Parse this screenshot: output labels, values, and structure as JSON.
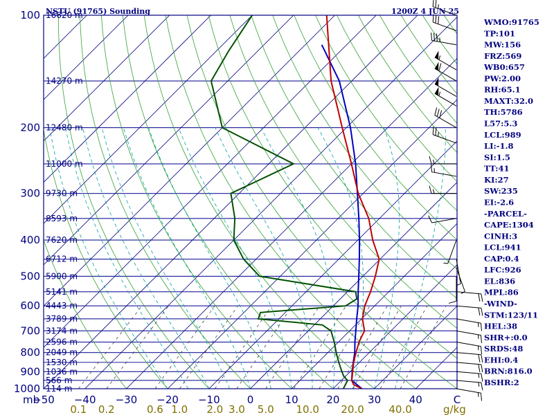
{
  "header": {
    "station_title": "NSTU (91765) Sounding",
    "valid_time": "1200Z  4 JUN 25"
  },
  "indices": [
    "WMO:91765",
    "TP:101",
    "MW:156",
    "FRZ:569",
    "WB0:657",
    "PW:2.00",
    "RH:65.1",
    "MAXT:32.0",
    "TH:5786",
    "L57:5.3",
    "LCL:989",
    "LI:-1.8",
    "SI:1.5",
    "TT:41",
    "KI:27",
    "SW:235",
    "EI:-2.6",
    "-PARCEL-",
    "CAPE:1304",
    "CINH:3",
    "LCL:941",
    "CAP:0.4",
    "LFC:926",
    "EL:836",
    "MPL:86",
    "-WIND-",
    "STM:123/11",
    "HEL:38",
    "SHR+:0.0",
    "SRDS:48",
    "EHI:0.4",
    "BRN:816.0",
    "BSHR:2"
  ],
  "colors": {
    "frame": "#000080",
    "isobar": "#1a1a9a",
    "isotherm": "#000080",
    "dry_adiabat": "#33a033",
    "moist_adiabat": "#00a0a0",
    "mixing_ratio": "#404040",
    "temperature": "#c00000",
    "dewpoint": "#005000",
    "parcel": "#0000c0",
    "mixing_ratio_labels": "#807000"
  },
  "chart_data": {
    "type": "line",
    "title": "NSTU (91765) Sounding",
    "subtitle": "1200Z  4 JUN 25",
    "xlabel": "",
    "ylabel": "mb",
    "y_scale": "log",
    "ylim": [
      1000,
      100
    ],
    "xlim": [
      -50,
      50
    ],
    "grid": true,
    "legend": "none",
    "pressure_ticks": [
      "100",
      "200",
      "300",
      "400",
      "500",
      "600",
      "700",
      "800",
      "900",
      "1000"
    ],
    "temperature_ticks": [
      "−50",
      "−40",
      "−30",
      "−20",
      "−10",
      "0",
      "10",
      "20",
      "30",
      "40"
    ],
    "right_corner_label": "C",
    "y_unit_label": "mb",
    "height_labels": [
      {
        "p": 100,
        "label": "16620 m"
      },
      {
        "p": 150,
        "label": "14270 m"
      },
      {
        "p": 200,
        "label": "12480 m"
      },
      {
        "p": 250,
        "label": "11000 m"
      },
      {
        "p": 300,
        "label": "9730 m"
      },
      {
        "p": 350,
        "label": "8593 m"
      },
      {
        "p": 400,
        "label": "7620 m"
      },
      {
        "p": 450,
        "label": "6712 m"
      },
      {
        "p": 500,
        "label": "5900 m"
      },
      {
        "p": 550,
        "label": "5141 m"
      },
      {
        "p": 600,
        "label": "4443 m"
      },
      {
        "p": 650,
        "label": "3789 m"
      },
      {
        "p": 700,
        "label": "3174 m"
      },
      {
        "p": 750,
        "label": "2596 m"
      },
      {
        "p": 800,
        "label": "2049 m"
      },
      {
        "p": 850,
        "label": "1530 m"
      },
      {
        "p": 900,
        "label": "1036 m"
      },
      {
        "p": 950,
        "label": "566 m"
      },
      {
        "p": 1000,
        "label": "114 m"
      }
    ],
    "mixing_ratio_units": "g/kg",
    "mixing_ratio_labels": [
      "0.1",
      "0.2",
      "0.6",
      "1.0",
      "2.0",
      "3.0",
      "5.0",
      "10.0",
      "20.0",
      "40.0"
    ],
    "series": [
      {
        "key": "temperature",
        "points": [
          {
            "p": 1000,
            "t": 27.0
          },
          {
            "p": 975,
            "t": 24.0
          },
          {
            "p": 950,
            "t": 22.5
          },
          {
            "p": 925,
            "t": 21.6
          },
          {
            "p": 900,
            "t": 20.6
          },
          {
            "p": 850,
            "t": 18.6
          },
          {
            "p": 800,
            "t": 16.8
          },
          {
            "p": 750,
            "t": 15.0
          },
          {
            "p": 700,
            "t": 13.6
          },
          {
            "p": 650,
            "t": 10.2
          },
          {
            "p": 600,
            "t": 7.6
          },
          {
            "p": 550,
            "t": 5.6
          },
          {
            "p": 500,
            "t": 3.0
          },
          {
            "p": 450,
            "t": -0.2
          },
          {
            "p": 400,
            "t": -6.4
          },
          {
            "p": 350,
            "t": -12.6
          },
          {
            "p": 300,
            "t": -21.2
          },
          {
            "p": 250,
            "t": -30.0
          },
          {
            "p": 200,
            "t": -41.0
          },
          {
            "p": 150,
            "t": -55.0
          },
          {
            "p": 100,
            "t": -72.0
          }
        ]
      },
      {
        "key": "dewpoint",
        "points": [
          {
            "p": 1000,
            "t": 22.5
          },
          {
            "p": 950,
            "t": 21.5
          },
          {
            "p": 925,
            "t": 19.5
          },
          {
            "p": 900,
            "t": 18.0
          },
          {
            "p": 850,
            "t": 15.0
          },
          {
            "p": 800,
            "t": 12.0
          },
          {
            "p": 750,
            "t": 9.0
          },
          {
            "p": 700,
            "t": 5.5
          },
          {
            "p": 675,
            "t": 2.0
          },
          {
            "p": 650,
            "t": -15.0
          },
          {
            "p": 625,
            "t": -16.0
          },
          {
            "p": 600,
            "t": 3.0
          },
          {
            "p": 575,
            "t": 4.0
          },
          {
            "p": 550,
            "t": 2.0
          },
          {
            "p": 500,
            "t": -25.0
          },
          {
            "p": 450,
            "t": -33.0
          },
          {
            "p": 400,
            "t": -40.0
          },
          {
            "p": 350,
            "t": -45.0
          },
          {
            "p": 300,
            "t": -52.0
          },
          {
            "p": 250,
            "t": -44.0
          },
          {
            "p": 200,
            "t": -70.0
          },
          {
            "p": 150,
            "t": -84.0
          },
          {
            "p": 125,
            "t": -87.0
          },
          {
            "p": 100,
            "t": -90.0
          }
        ]
      },
      {
        "key": "parcel",
        "points": [
          {
            "p": 1000,
            "t": 27.0
          },
          {
            "p": 950,
            "t": 22.5
          },
          {
            "p": 900,
            "t": 20.5
          },
          {
            "p": 850,
            "t": 18.5
          },
          {
            "p": 800,
            "t": 16.5
          },
          {
            "p": 750,
            "t": 14.0
          },
          {
            "p": 700,
            "t": 11.5
          },
          {
            "p": 650,
            "t": 8.8
          },
          {
            "p": 600,
            "t": 6.0
          },
          {
            "p": 550,
            "t": 2.6
          },
          {
            "p": 500,
            "t": -1.0
          },
          {
            "p": 450,
            "t": -5.0
          },
          {
            "p": 400,
            "t": -9.6
          },
          {
            "p": 350,
            "t": -15.0
          },
          {
            "p": 300,
            "t": -21.4
          },
          {
            "p": 250,
            "t": -29.0
          },
          {
            "p": 200,
            "t": -39.0
          },
          {
            "p": 150,
            "t": -53.0
          },
          {
            "p": 120,
            "t": -66.0
          }
        ]
      }
    ],
    "wind_barbs": [
      {
        "p": 1000,
        "dir": 100,
        "spd": 15
      },
      {
        "p": 950,
        "dir": 95,
        "spd": 15
      },
      {
        "p": 900,
        "dir": 95,
        "spd": 15
      },
      {
        "p": 850,
        "dir": 95,
        "spd": 20
      },
      {
        "p": 800,
        "dir": 95,
        "spd": 20
      },
      {
        "p": 750,
        "dir": 100,
        "spd": 15
      },
      {
        "p": 700,
        "dir": 100,
        "spd": 15
      },
      {
        "p": 650,
        "dir": 100,
        "spd": 15
      },
      {
        "p": 600,
        "dir": 95,
        "spd": 20
      },
      {
        "p": 550,
        "dir": 95,
        "spd": 20
      },
      {
        "p": 500,
        "dir": 180,
        "spd": 10
      },
      {
        "p": 475,
        "dir": 160,
        "spd": 5
      },
      {
        "p": 450,
        "dir": 170,
        "spd": 5
      },
      {
        "p": 400,
        "dir": 200,
        "spd": 5
      },
      {
        "p": 350,
        "dir": 260,
        "spd": 10
      },
      {
        "p": 300,
        "dir": 270,
        "spd": 15
      },
      {
        "p": 270,
        "dir": 280,
        "spd": 15
      },
      {
        "p": 250,
        "dir": 270,
        "spd": 15
      },
      {
        "p": 220,
        "dir": 290,
        "spd": 25
      },
      {
        "p": 200,
        "dir": 300,
        "spd": 30
      },
      {
        "p": 175,
        "dir": 300,
        "spd": 55
      },
      {
        "p": 165,
        "dir": 300,
        "spd": 50
      },
      {
        "p": 150,
        "dir": 300,
        "spd": 60
      },
      {
        "p": 140,
        "dir": 300,
        "spd": 55
      },
      {
        "p": 120,
        "dir": 280,
        "spd": 35
      },
      {
        "p": 110,
        "dir": 290,
        "spd": 30
      },
      {
        "p": 100,
        "dir": 290,
        "spd": 25
      }
    ]
  }
}
